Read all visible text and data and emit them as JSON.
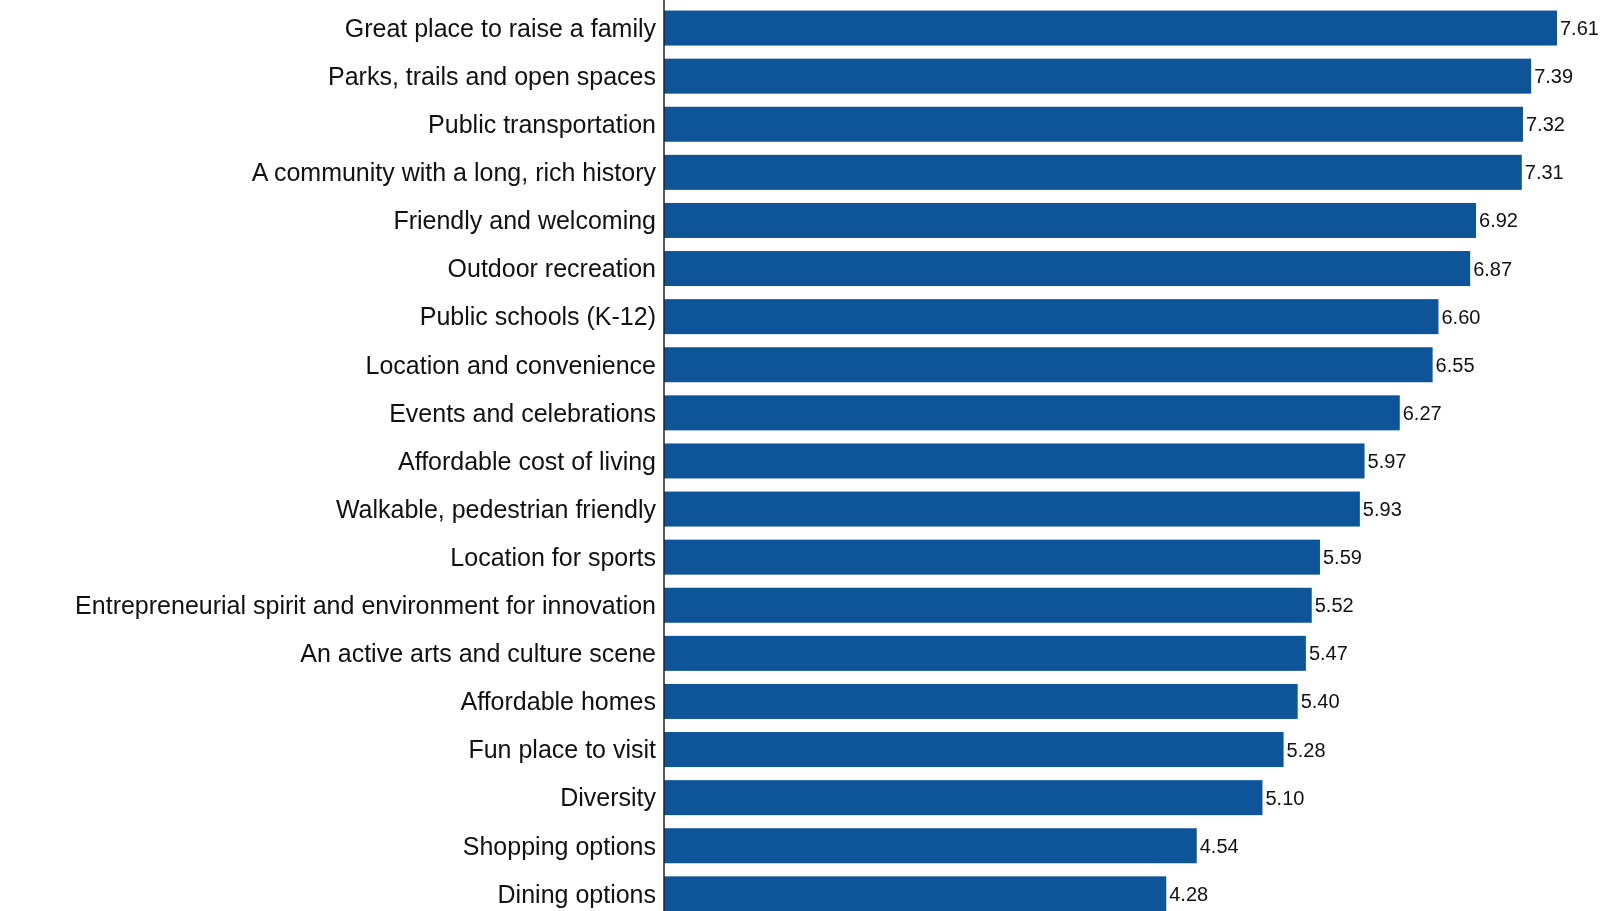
{
  "chart_data": {
    "type": "bar",
    "orientation": "horizontal",
    "data_labels": true,
    "color": "#0e5499",
    "categories": [
      "Great place to raise a family",
      "Parks, trails and open spaces",
      "Public transportation",
      "A community with a long, rich history",
      "Friendly and welcoming",
      "Outdoor recreation",
      "Public schools (K-12)",
      "Location and convenience",
      "Events and celebrations",
      "Affordable cost of living",
      "Walkable, pedestrian friendly",
      "Location for sports",
      "Entrepreneurial spirit and environment for innovation",
      "An active arts and culture scene",
      "Affordable homes",
      "Fun place to visit",
      "Diversity",
      "Shopping options",
      "Dining options"
    ],
    "values": [
      7.61,
      7.39,
      7.32,
      7.31,
      6.92,
      6.87,
      6.6,
      6.55,
      6.27,
      5.97,
      5.93,
      5.59,
      5.52,
      5.47,
      5.4,
      5.28,
      5.1,
      4.54,
      4.28
    ],
    "value_labels": [
      "7.61",
      "7.39",
      "7.32",
      "7.31",
      "6.92",
      "6.87",
      "6.60",
      "6.55",
      "6.27",
      "5.97",
      "5.93",
      "5.59",
      "5.52",
      "5.47",
      "5.40",
      "5.28",
      "5.10",
      "4.54",
      "4.28"
    ]
  }
}
